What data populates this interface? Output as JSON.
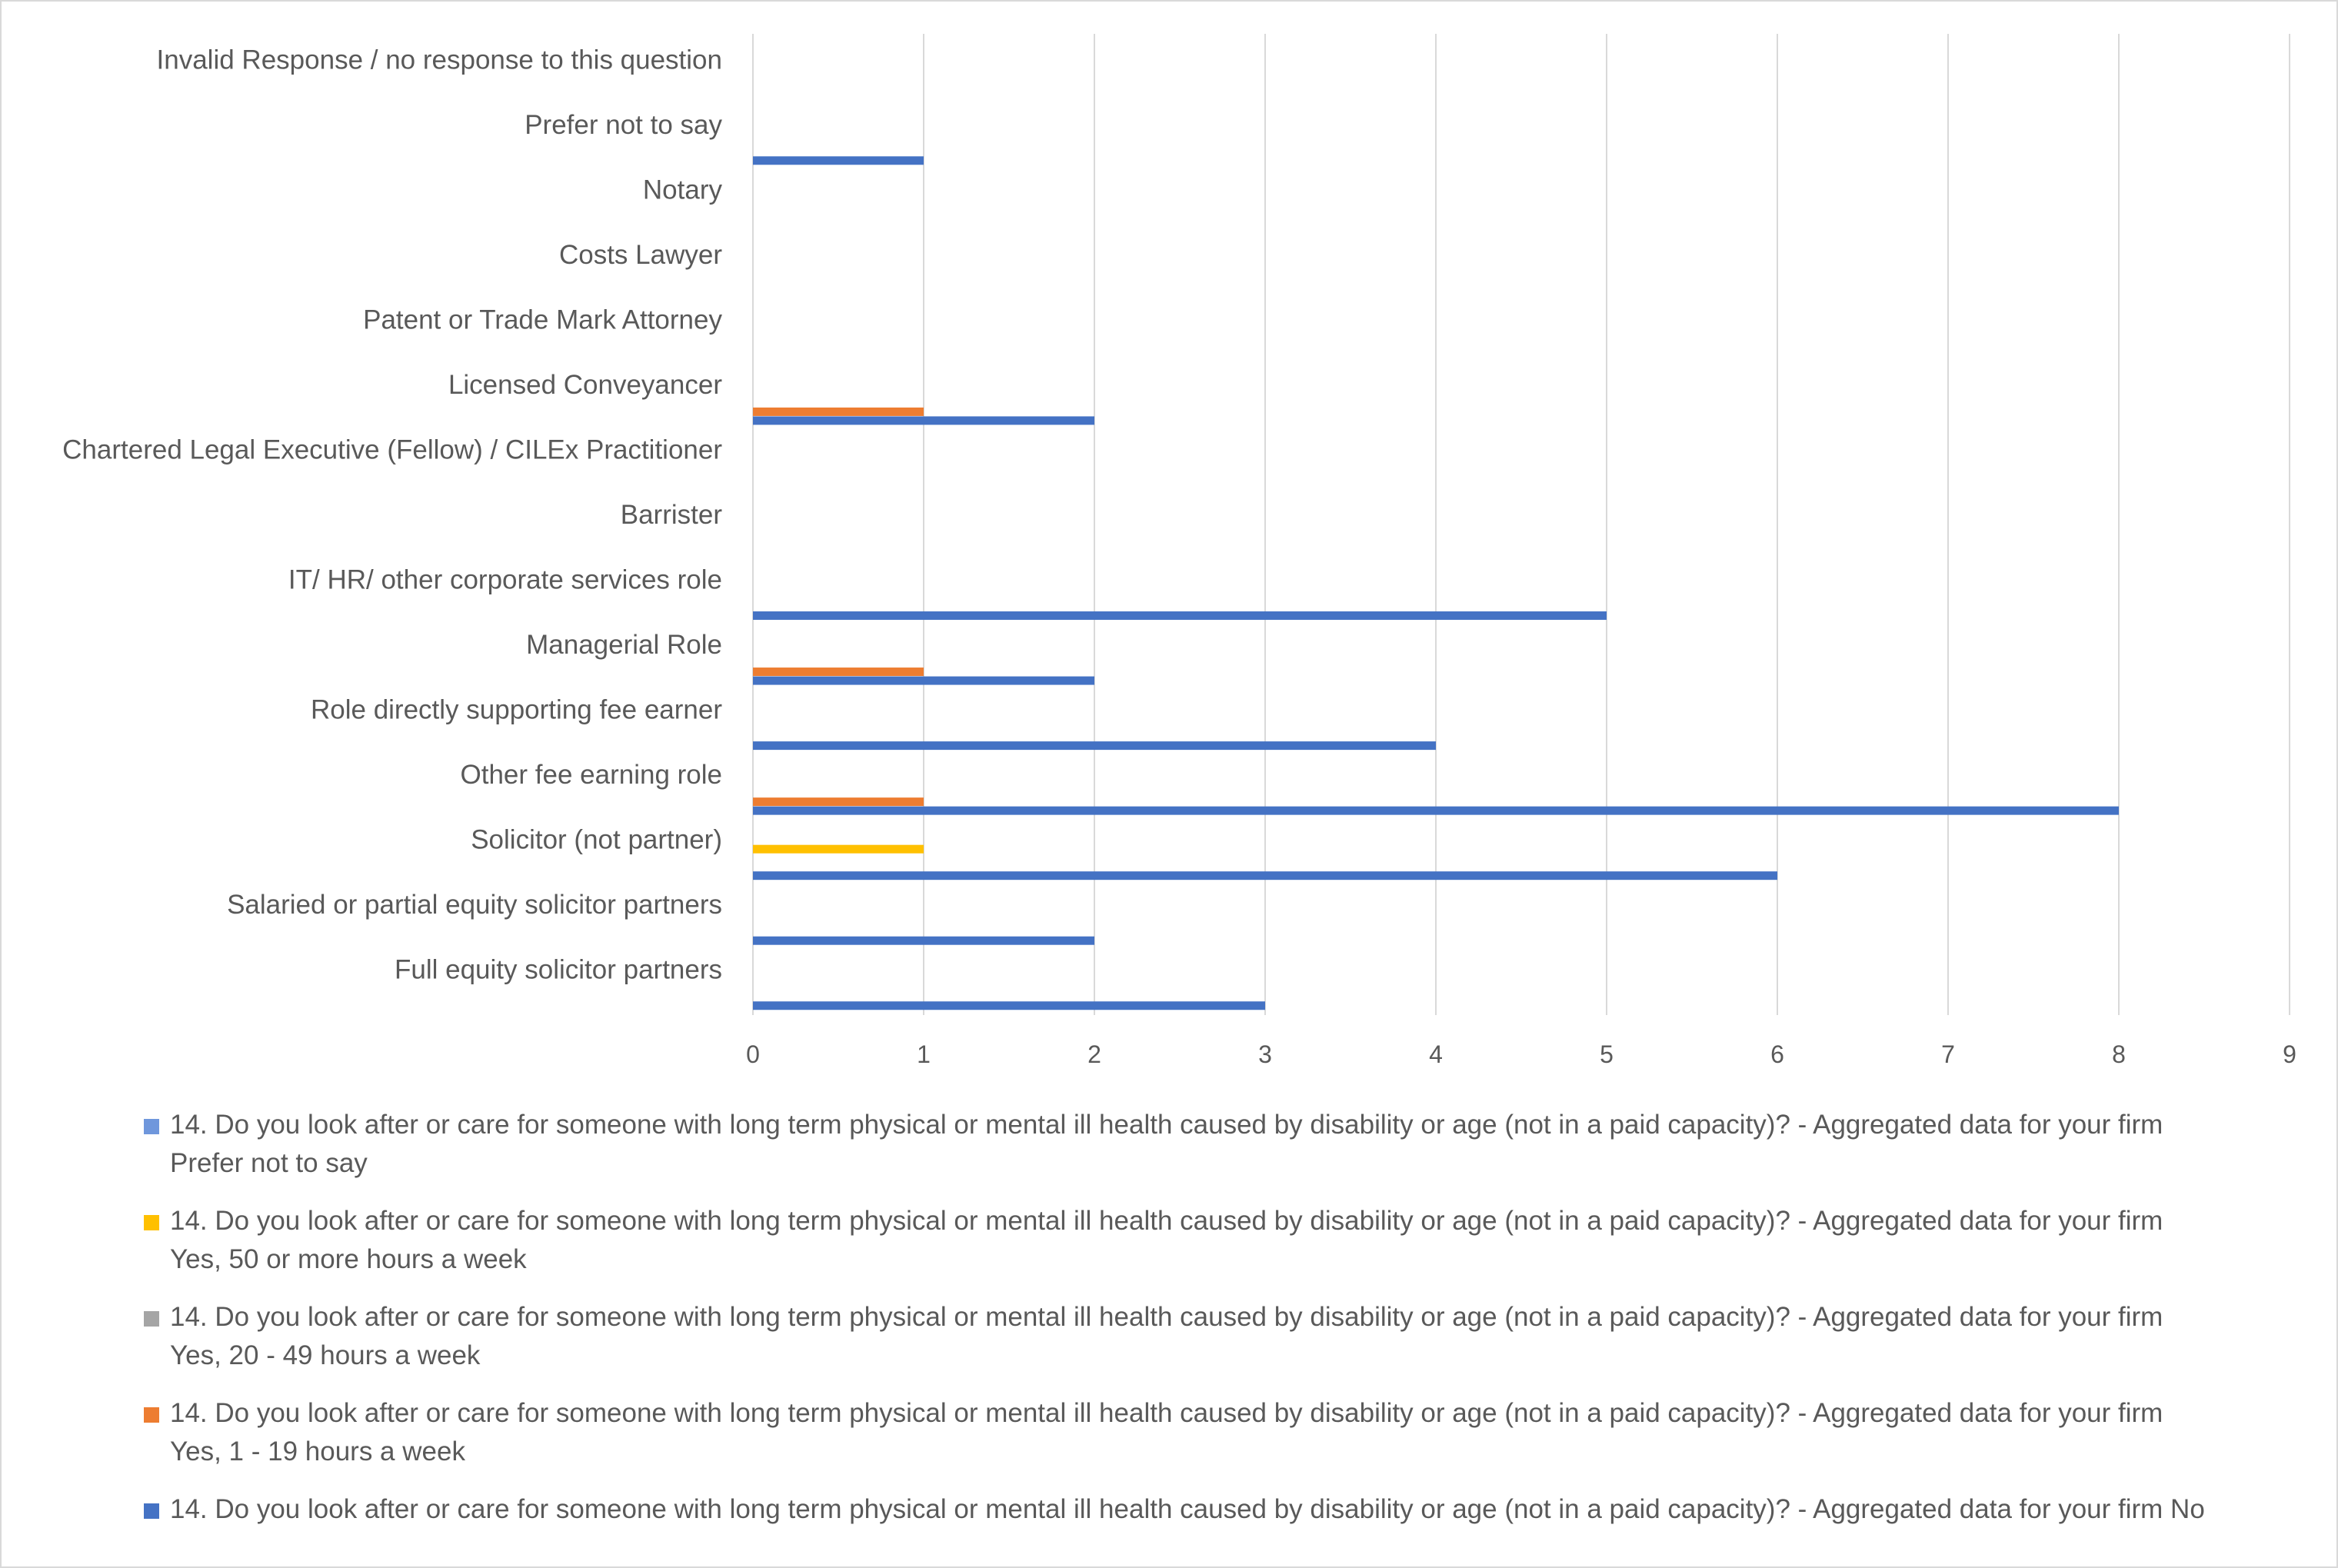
{
  "chart_data": {
    "type": "bar",
    "orientation": "horizontal",
    "categories": [
      "Full equity solicitor partners",
      "Salaried or partial equity solicitor partners",
      "Solicitor (not partner)",
      "Other fee earning role",
      "Role directly supporting fee earner",
      "Managerial Role",
      "IT/ HR/ other corporate services role",
      "Barrister",
      "Chartered Legal Executive (Fellow) / CILEx Practitioner",
      "Licensed Conveyancer",
      "Patent or Trade Mark Attorney",
      "Costs Lawyer",
      "Notary",
      "Prefer not to say",
      "Invalid Response / no response to this question"
    ],
    "series": [
      {
        "name": "14. Do you look after or care for someone with long term physical or mental ill health caused by disability or age (not in a paid capacity)? - Aggregated data for your firm No",
        "color": "#4472C4",
        "values": [
          3,
          2,
          6,
          8,
          4,
          2,
          5,
          0,
          0,
          2,
          0,
          0,
          0,
          1,
          0
        ]
      },
      {
        "name": "14. Do you look after or care for someone with long term physical or mental ill health caused by disability or age (not in a paid capacity)? - Aggregated data for your firm Yes, 1 - 19 hours a week",
        "color": "#ED7D31",
        "values": [
          0,
          0,
          0,
          1,
          0,
          1,
          0,
          0,
          0,
          1,
          0,
          0,
          0,
          0,
          0
        ]
      },
      {
        "name": "14. Do you look after or care for someone with long term physical or mental ill health caused by disability or age (not in a paid capacity)? - Aggregated data for your firm Yes, 20 - 49 hours a week",
        "color": "#A5A5A5",
        "values": [
          0,
          0,
          0,
          0,
          0,
          0,
          0,
          0,
          0,
          0,
          0,
          0,
          0,
          0,
          0
        ]
      },
      {
        "name": "14. Do you look after or care for someone with long term physical or mental ill health caused by disability or age (not in a paid capacity)? - Aggregated data for your firm Yes, 50 or more hours a week",
        "color": "#FFC000",
        "values": [
          0,
          0,
          1,
          0,
          0,
          0,
          0,
          0,
          0,
          0,
          0,
          0,
          0,
          0,
          0
        ]
      },
      {
        "name": "14. Do you look after or care for someone with long term physical or mental ill health caused by disability or age (not in a paid capacity)? - Aggregated data for your firm Prefer not to say",
        "color": "#6F97DC",
        "values": [
          0,
          0,
          0,
          0,
          0,
          0,
          0,
          0,
          0,
          0,
          0,
          0,
          0,
          0,
          0
        ]
      }
    ],
    "xlim": [
      0,
      9
    ],
    "xticks": [
      "0",
      "1",
      "2",
      "3",
      "4",
      "5",
      "6",
      "7",
      "8",
      "9"
    ],
    "grid": "vertical",
    "legend_position": "bottom",
    "legend_order": [
      4,
      3,
      2,
      1,
      0
    ],
    "title": "",
    "xlabel": "",
    "ylabel": ""
  }
}
